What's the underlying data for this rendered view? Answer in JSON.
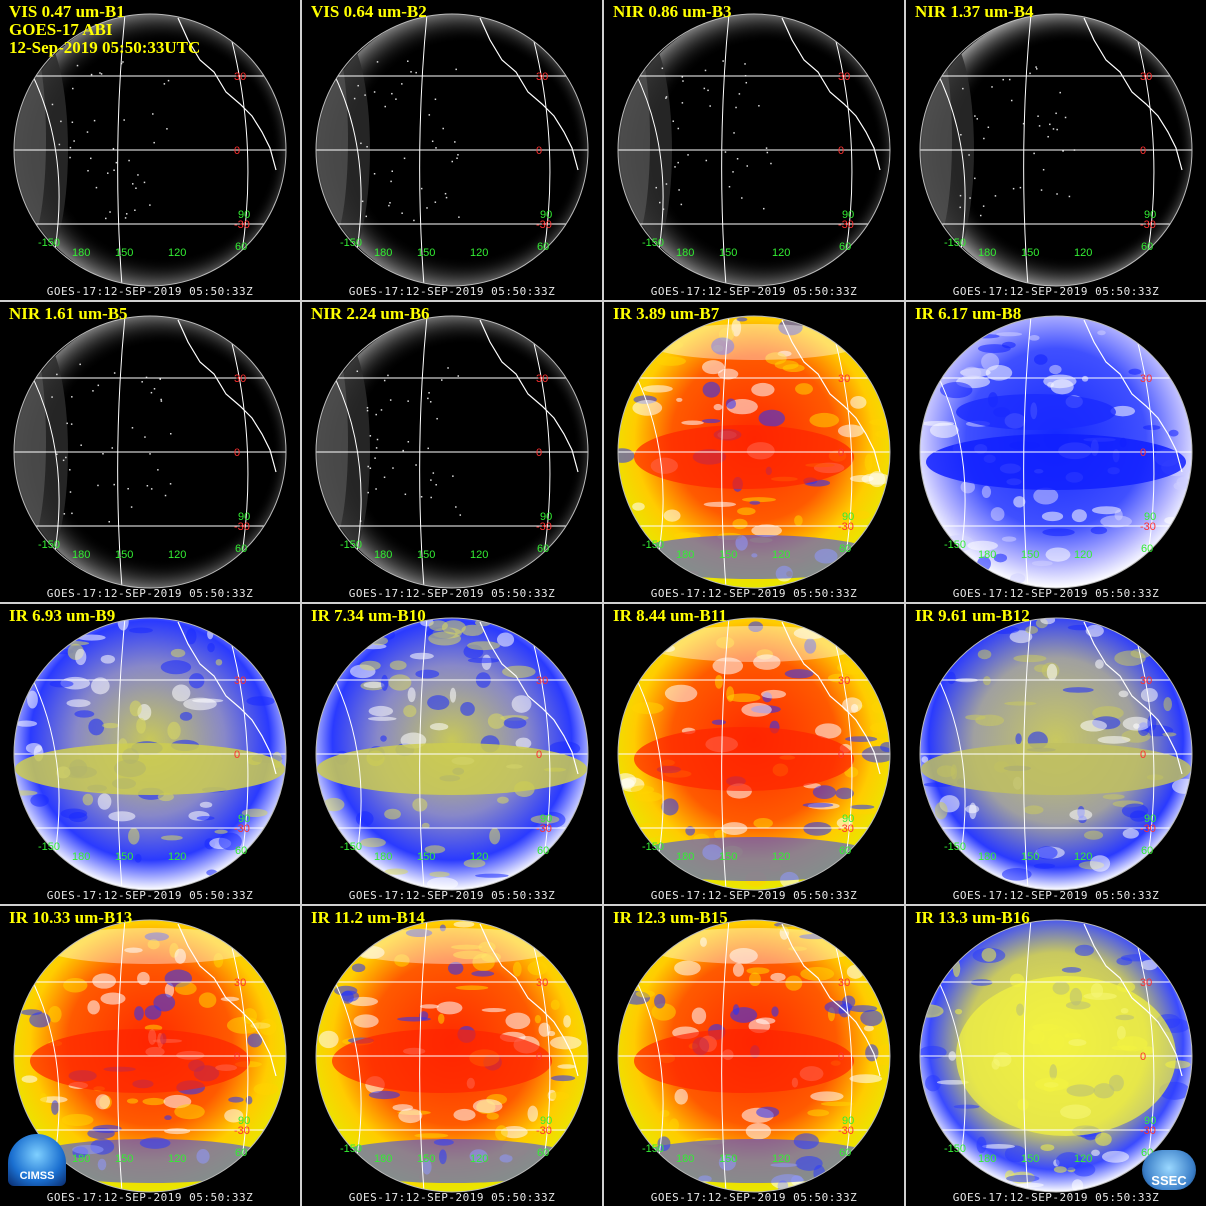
{
  "header": {
    "line2": "GOES-17 ABI",
    "line3": "12-Sep-2019 05:50:33UTC"
  },
  "footer_text": "GOES-17:12-SEP-2019 05:50:33Z",
  "lat_labels": [
    "30",
    "0",
    "-30"
  ],
  "lon_labels": [
    "-150",
    "180",
    "150",
    "120",
    "60",
    "90"
  ],
  "logos": {
    "left": "CIMSS",
    "right": "SSEC"
  },
  "panels": [
    {
      "title": "VIS 0.47 um-B1",
      "style": "vis"
    },
    {
      "title": "VIS 0.64 um-B2",
      "style": "vis"
    },
    {
      "title": "NIR 0.86 um-B3",
      "style": "vis"
    },
    {
      "title": "NIR 1.37 um-B4",
      "style": "vis4"
    },
    {
      "title": "NIR 1.61 um-B5",
      "style": "vis"
    },
    {
      "title": "NIR 2.24 um-B6",
      "style": "vis"
    },
    {
      "title": "IR 3.89 um-B7",
      "style": "ir"
    },
    {
      "title": "IR 6.17 um-B8",
      "style": "wv1"
    },
    {
      "title": "IR 6.93 um-B9",
      "style": "wv2"
    },
    {
      "title": "IR 7.34 um-B10",
      "style": "wv2"
    },
    {
      "title": "IR 8.44 um-B11",
      "style": "ir"
    },
    {
      "title": "IR 9.61 um-B12",
      "style": "oz"
    },
    {
      "title": "IR 10.33 um-B13",
      "style": "ir"
    },
    {
      "title": "IR 11.2 um-B14",
      "style": "ir"
    },
    {
      "title": "IR 12.3 um-B15",
      "style": "ir"
    },
    {
      "title": "IR 13.3 um-B16",
      "style": "co2"
    }
  ],
  "colors": {
    "title": "#ffff00",
    "lat_label": "#ff3030",
    "lon_label": "#33ee33",
    "grid": "#ffffff",
    "ir_warm": "#ff2a00",
    "ir_mid": "#ffcc00",
    "ir_cold": "#2233ff",
    "wv_dry": "#d8d860",
    "wv_moist": "#1a2aff"
  }
}
